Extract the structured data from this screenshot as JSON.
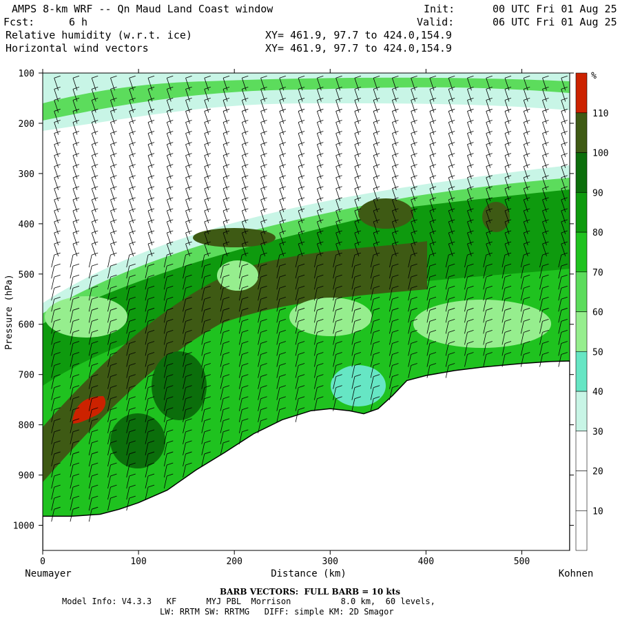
{
  "header": {
    "title": "AMPS 8-km WRF -- Qn Maud Land Coast window",
    "init_label": "Init:",
    "init_value": "00 UTC Fri 01 Aug 25",
    "fcst_label": "Fcst:",
    "fcst_value": "6 h",
    "valid_label": "Valid:",
    "valid_value": "06 UTC Fri 01 Aug 25",
    "field1": "Relative humidity (w.r.t. ice)",
    "field1_xy": "XY= 461.9, 97.7 to 424.0,154.9",
    "field2": "Horizontal wind vectors",
    "field2_xy": "XY= 461.9, 97.7 to 424.0,154.9"
  },
  "footer": {
    "barb_title": "BARB VECTORS:  FULL BARB = 10 kts",
    "model_info": "Model Info: V4.3.3   KF      MYJ PBL  Morrison          8.0 km,  60 levels,",
    "model_info2": "LW: RRTM SW: RRTMG   DIFF: simple KM: 2D Smagor"
  },
  "chart_data": {
    "type": "heatmap",
    "title": "",
    "xlabel": "Distance (km)",
    "ylabel": "Pressure (hPa)",
    "xlim": [
      0,
      550
    ],
    "ylim": [
      1050,
      100
    ],
    "x_ticks": [
      0,
      100,
      200,
      300,
      400,
      500
    ],
    "y_ticks": [
      100,
      200,
      300,
      400,
      500,
      600,
      700,
      800,
      900,
      1000
    ],
    "x_left_label": "Neumayer",
    "x_right_label": "Kohnen",
    "colorbar": {
      "unit": "%",
      "levels": [
        10,
        20,
        30,
        40,
        50,
        60,
        70,
        80,
        90,
        100,
        110
      ],
      "colors": [
        "#ffffff",
        "#ffffff",
        "#ffffff",
        "#c8f5e6",
        "#66e6c4",
        "#96ee8e",
        "#5cdc5c",
        "#1fc21f",
        "#0e9a0e",
        "#0b6e0b",
        "#3e5a14",
        "#cc2200"
      ]
    },
    "terrain_surface": {
      "x": [
        0,
        30,
        60,
        80,
        100,
        130,
        160,
        190,
        220,
        250,
        280,
        300,
        320,
        335,
        350,
        365,
        380,
        400,
        430,
        460,
        500,
        530,
        550
      ],
      "p": [
        982,
        982,
        978,
        968,
        955,
        930,
        890,
        855,
        818,
        790,
        772,
        768,
        772,
        778,
        768,
        742,
        712,
        702,
        692,
        685,
        678,
        674,
        673
      ]
    }
  }
}
